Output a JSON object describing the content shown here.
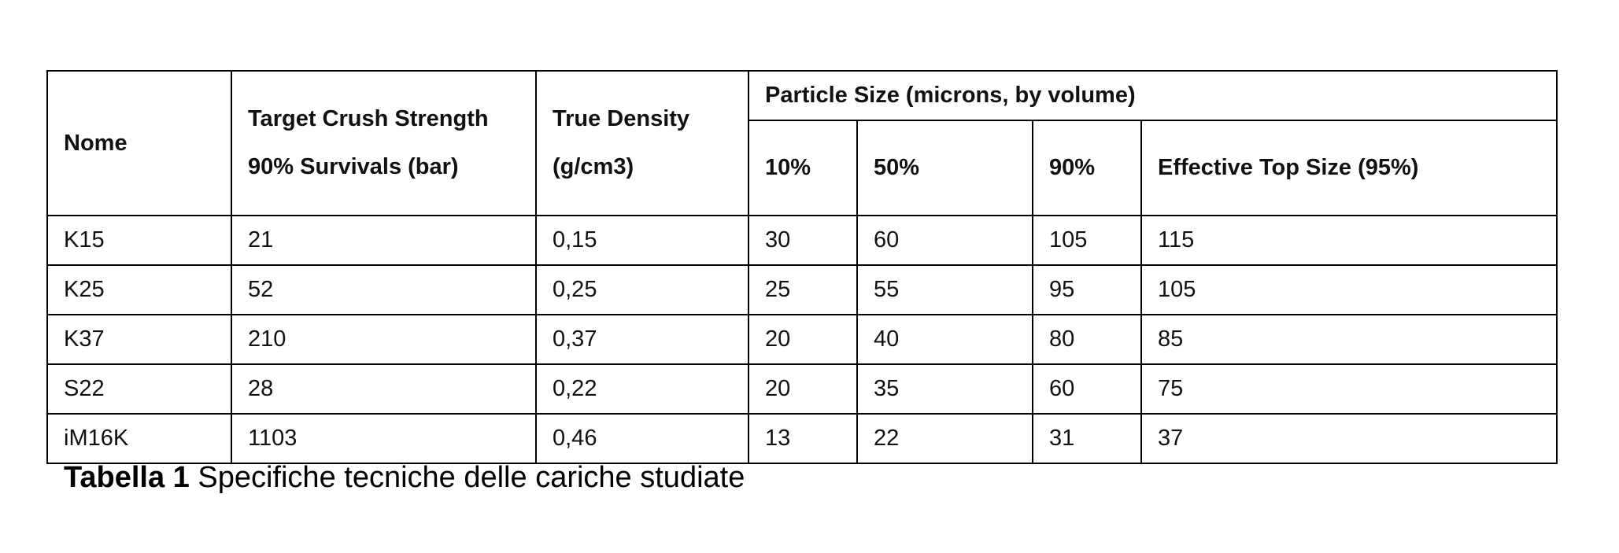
{
  "table": {
    "header": {
      "top": [
        "Nome",
        "Target Crush Strength 90% Survivals (bar)",
        "True Density (g/cm3)",
        "Particle Size (microns, by volume)"
      ],
      "sub": [
        "10%",
        "50%",
        "90%",
        "Effective Top Size (95%)"
      ]
    },
    "rows": [
      [
        "K15",
        "21",
        "0,15",
        "30",
        "60",
        "105",
        "115"
      ],
      [
        "K25",
        "52",
        "0,25",
        "25",
        "55",
        "95",
        "105"
      ],
      [
        "K37",
        "210",
        "0,37",
        "20",
        "40",
        "80",
        "85"
      ],
      [
        "S22",
        "28",
        "0,22",
        "20",
        "35",
        "60",
        "75"
      ],
      [
        "iM16K",
        "1103",
        "0,46",
        "13",
        "22",
        "31",
        "37"
      ]
    ]
  },
  "caption": {
    "label": "Tabella 1",
    "text": "Specifiche tecniche delle cariche studiate"
  }
}
